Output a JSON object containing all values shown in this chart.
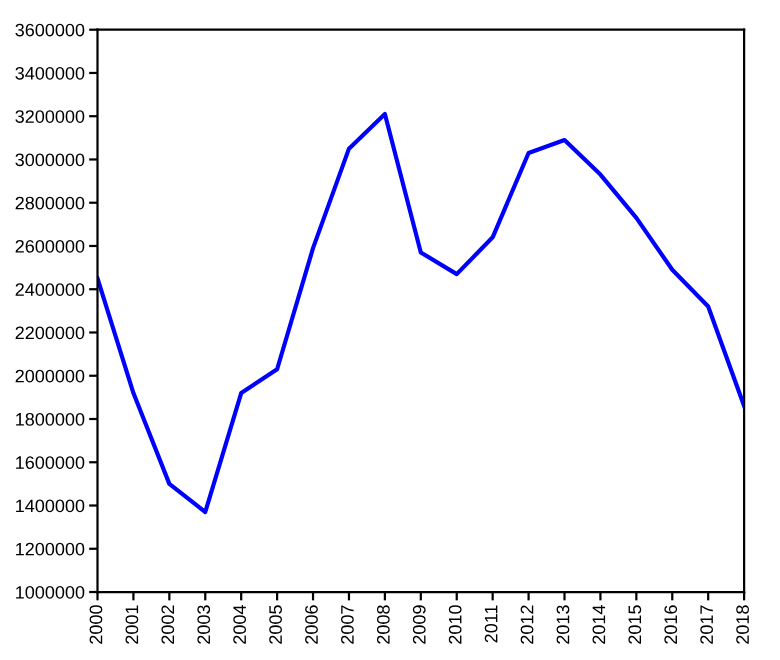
{
  "chart_data": {
    "type": "line",
    "x": [
      2000,
      2001,
      2002,
      2003,
      2004,
      2005,
      2006,
      2007,
      2008,
      2009,
      2010,
      2011,
      2012,
      2013,
      2014,
      2015,
      2016,
      2017,
      2018
    ],
    "series": [
      {
        "color": "#0000ff",
        "values": [
          2450000,
          1920000,
          1500000,
          1370000,
          1920000,
          2030000,
          2590000,
          3050000,
          3210000,
          2570000,
          2470000,
          2640000,
          3030000,
          3090000,
          2930000,
          2730000,
          2490000,
          2320000,
          1860000
        ]
      }
    ],
    "xlim": [
      2000,
      2018
    ],
    "xticks": [
      2000,
      2001,
      2002,
      2003,
      2004,
      2005,
      2006,
      2007,
      2008,
      2009,
      2010,
      2011,
      2012,
      2013,
      2014,
      2015,
      2016,
      2017,
      2018
    ],
    "ylim": [
      1000000,
      3600000
    ],
    "yticks": [
      1000000,
      1200000,
      1400000,
      1600000,
      1800000,
      2000000,
      2200000,
      2400000,
      2600000,
      2800000,
      3000000,
      3200000,
      3400000,
      3600000
    ],
    "grid": false,
    "legend": false
  }
}
